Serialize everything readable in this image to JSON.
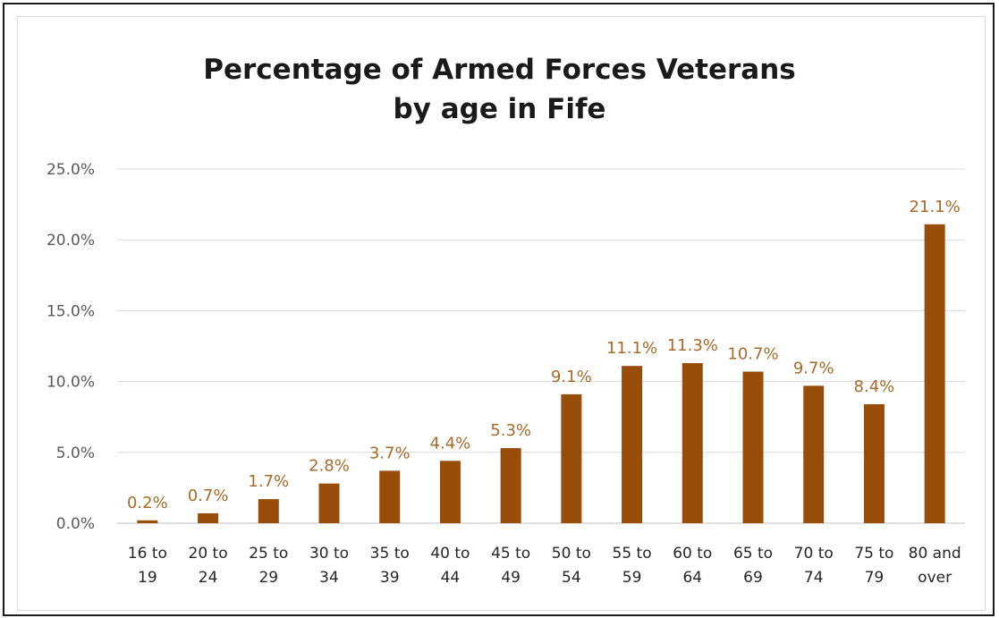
{
  "chart_data": {
    "type": "bar",
    "title_lines": [
      "Percentage of Armed Forces Veterans",
      "by age in Fife"
    ],
    "categories": [
      [
        "16 to",
        "19"
      ],
      [
        "20 to",
        "24"
      ],
      [
        "25 to",
        "29"
      ],
      [
        "30 to",
        "34"
      ],
      [
        "35 to",
        "39"
      ],
      [
        "40 to",
        "44"
      ],
      [
        "45 to",
        "49"
      ],
      [
        "50 to",
        "54"
      ],
      [
        "55 to",
        "59"
      ],
      [
        "60 to",
        "64"
      ],
      [
        "65 to",
        "69"
      ],
      [
        "70 to",
        "74"
      ],
      [
        "75 to",
        "79"
      ],
      [
        "80 and",
        "over"
      ]
    ],
    "values": [
      0.2,
      0.7,
      1.7,
      2.8,
      3.7,
      4.4,
      5.3,
      9.1,
      11.1,
      11.3,
      10.7,
      9.7,
      8.4,
      21.1
    ],
    "data_labels": [
      "0.2%",
      "0.7%",
      "1.7%",
      "2.8%",
      "3.7%",
      "4.4%",
      "5.3%",
      "9.1%",
      "11.1%",
      "11.3%",
      "10.7%",
      "9.7%",
      "8.4%",
      "21.1%"
    ],
    "y_ticks": [
      0,
      5,
      10,
      15,
      20,
      25
    ],
    "y_tick_labels": [
      "0.0%",
      "5.0%",
      "10.0%",
      "15.0%",
      "20.0%",
      "25.0%"
    ],
    "ylim": [
      0,
      25
    ],
    "grid": true,
    "legend": "none",
    "colors": {
      "bar": "#994d0a",
      "data_label": "#a86a2a",
      "grid": "#d9d9d9",
      "axis": "#bfbfbf"
    }
  }
}
